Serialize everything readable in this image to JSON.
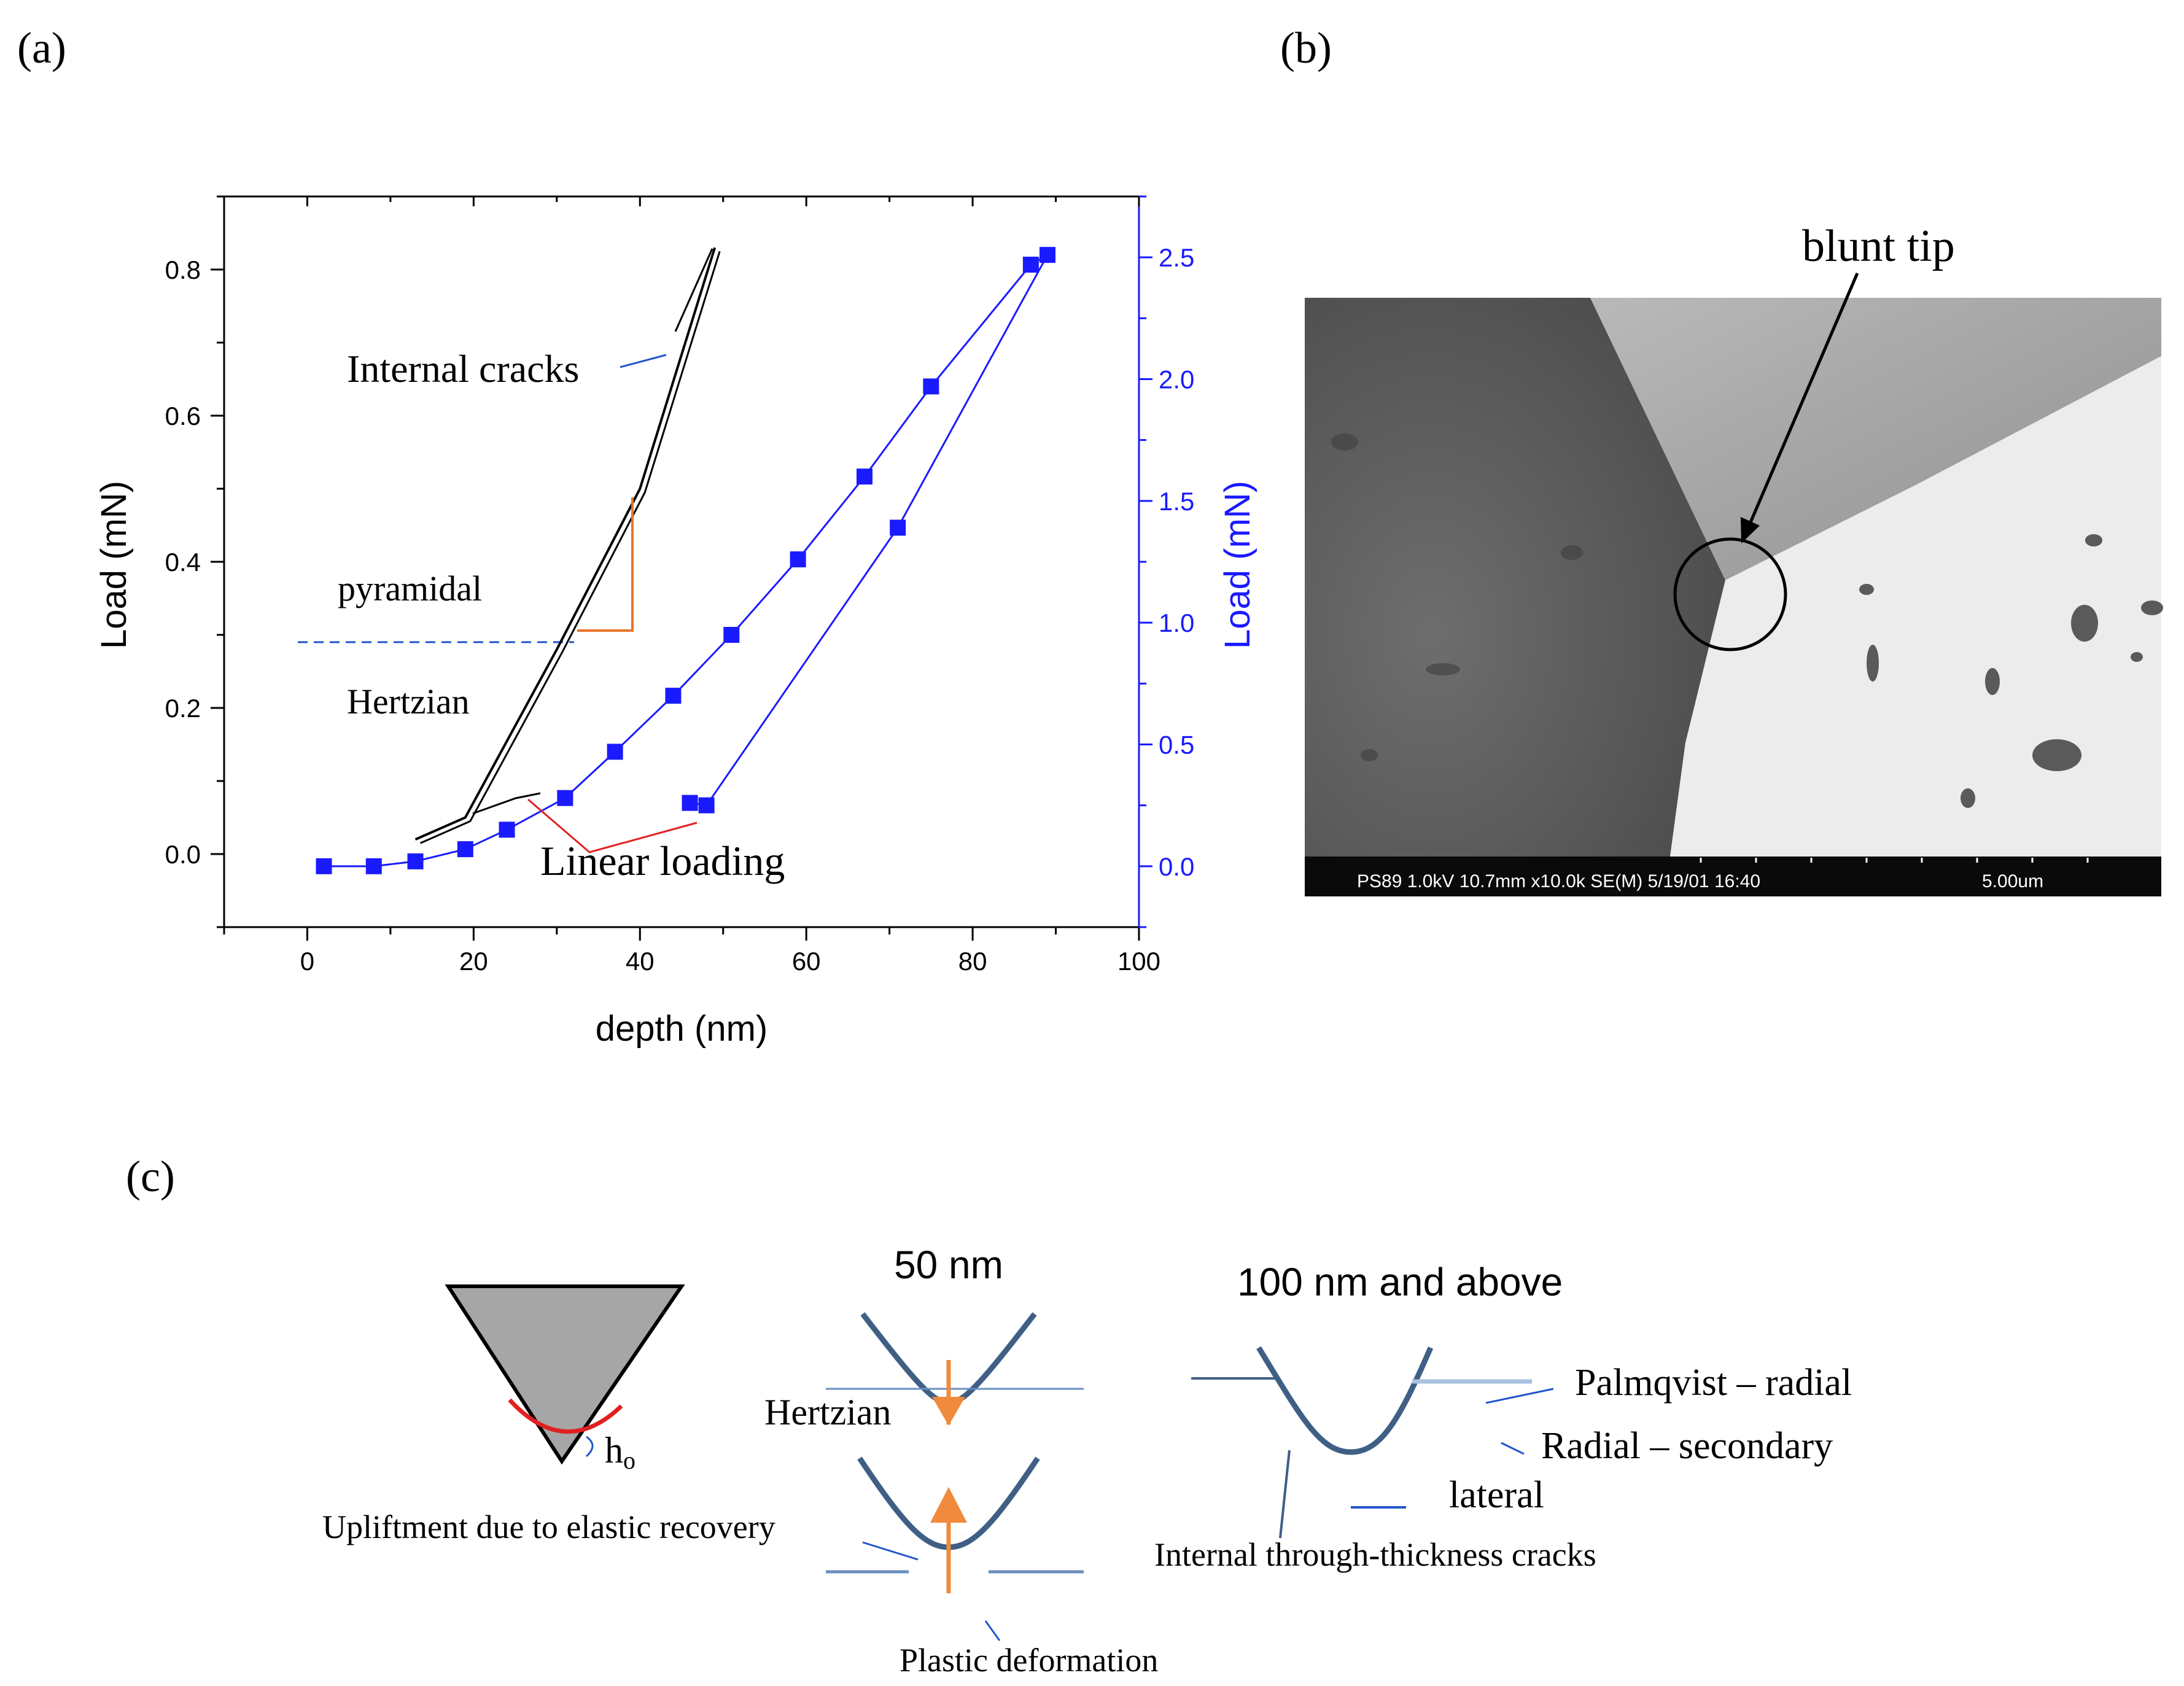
{
  "panels": {
    "a": {
      "label": "(a)"
    },
    "b": {
      "label": "(b)"
    },
    "c": {
      "label": "(c)"
    }
  },
  "chart_data": {
    "type": "line",
    "xlabel": "depth (nm)",
    "ylabel_left": "Load (mN)",
    "ylabel_right": "Load (mN)",
    "xlim": [
      -10,
      100
    ],
    "ylim_left": [
      -0.1,
      0.9
    ],
    "ylim_right": [
      -0.25,
      2.75
    ],
    "x_ticks": [
      "0",
      "20",
      "40",
      "60",
      "80",
      "100"
    ],
    "y_left_ticks": [
      "0.0",
      "0.2",
      "0.4",
      "0.6",
      "0.8"
    ],
    "y_right_ticks": [
      "0.0",
      "0.5",
      "1.0",
      "1.5",
      "2.0",
      "2.5"
    ],
    "grid": false,
    "series": [
      {
        "axis": "right",
        "color": "#1a1aff",
        "marker": "square",
        "points": [
          [
            2,
            0.0
          ],
          [
            8,
            0.0
          ],
          [
            13,
            0.02
          ],
          [
            19,
            0.07
          ],
          [
            24,
            0.15
          ],
          [
            31,
            0.28
          ],
          [
            37,
            0.47
          ],
          [
            44,
            0.7
          ],
          [
            51,
            0.95
          ],
          [
            59,
            1.26
          ],
          [
            67,
            1.6
          ],
          [
            75,
            1.97
          ],
          [
            87,
            2.47
          ],
          [
            89,
            2.51
          ],
          [
            71,
            1.39
          ],
          [
            48,
            0.25
          ],
          [
            46,
            0.26
          ]
        ]
      },
      {
        "axis": "left",
        "color": "#000000",
        "points": [
          [
            13,
            0.02
          ],
          [
            19,
            0.05
          ],
          [
            30,
            0.28
          ],
          [
            40,
            0.5
          ],
          [
            49,
            0.83
          ]
        ]
      }
    ],
    "reference_line_y_left": 0.29,
    "annotations": {
      "internal_cracks": "Internal cracks",
      "pyramidal": "pyramidal",
      "hertzian": "Hertzian",
      "linear_loading": "Linear loading"
    }
  },
  "sem": {
    "callout": "blunt tip",
    "info_bar": "PS89 1.0kV 10.7mm x10.0k SE(M) 5/19/01 16:40",
    "scale": "5.00um"
  },
  "schematic": {
    "h0": "h",
    "h0_sub": "o",
    "title_50": "50 nm",
    "title_100": "100 nm and above",
    "hertzian": "Hertzian",
    "upliftment": "Upliftment due to elastic recovery",
    "plastic": "Plastic deformation",
    "palmqvist": "Palmqvist – radial",
    "radial_secondary": "Radial – secondary",
    "lateral": "lateral",
    "internal_through": "Internal through-thickness cracks"
  }
}
